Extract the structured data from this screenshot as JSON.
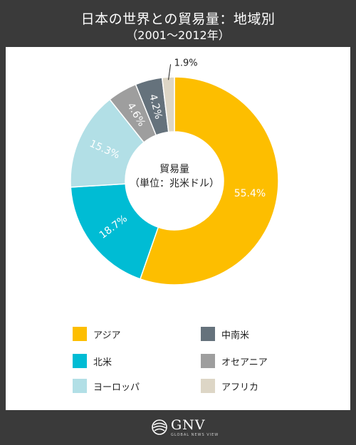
{
  "header": {
    "title": "日本の世界との貿易量：地域別",
    "subtitle": "（2001～2012年）"
  },
  "chart_data": {
    "type": "pie",
    "variant": "donut",
    "center_label_line1": "貿易量",
    "center_label_line2": "（単位：兆米ドル）",
    "slices": [
      {
        "label": "アジア",
        "value": 55.4,
        "display": "55.4%",
        "color": "#FDBE00"
      },
      {
        "label": "北米",
        "value": 18.7,
        "display": "18.7%",
        "color": "#00BCD4"
      },
      {
        "label": "ヨーロッパ",
        "value": 15.3,
        "display": "15.3%",
        "color": "#B2DFE6"
      },
      {
        "label": "オセアニア",
        "value": 4.6,
        "display": "4.6%",
        "color": "#9E9E9E"
      },
      {
        "label": "中南米",
        "value": 4.2,
        "display": "4.2%",
        "color": "#65727C"
      },
      {
        "label": "アフリカ",
        "value": 1.9,
        "display": "1.9%",
        "color": "#DDD6C6"
      }
    ]
  },
  "legend": [
    {
      "label": "アジア",
      "color": "#FDBE00"
    },
    {
      "label": "中南米",
      "color": "#65727C"
    },
    {
      "label": "北米",
      "color": "#00BCD4"
    },
    {
      "label": "オセアニア",
      "color": "#9E9E9E"
    },
    {
      "label": "ヨーロッパ",
      "color": "#B2DFE6"
    },
    {
      "label": "アフリカ",
      "color": "#DDD6C6"
    }
  ],
  "footer": {
    "logo_text": "GNV",
    "logo_subtext": "GLOBAL NEWS VIEW",
    "logo_icon": "globe-icon"
  }
}
